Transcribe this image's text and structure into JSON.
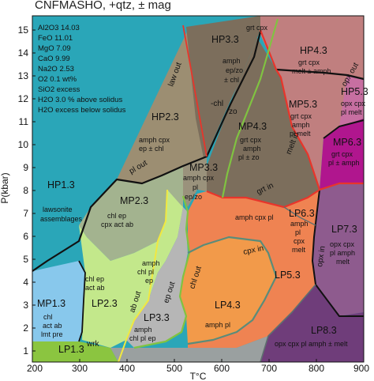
{
  "title": "CNFMASHO, +qtz, ± mag",
  "axes": {
    "x_label": "T°C",
    "y_label": "P(kbar)",
    "x_ticks": [
      "200",
      "300",
      "400",
      "500",
      "600",
      "700",
      "800",
      "900"
    ],
    "y_ticks": [
      "1",
      "2",
      "3",
      "4",
      "5",
      "6",
      "7",
      "8",
      "9",
      "10",
      "11",
      "12",
      "13",
      "14",
      "15"
    ],
    "x_range": [
      200,
      900
    ],
    "y_range": [
      0.5,
      15.5
    ]
  },
  "composition": [
    "Al2O3 14.03",
    "FeO    11.01",
    "MgO    7.09",
    "CaO    9.99",
    "Na2O  2.53",
    "O2       0.1 wt%",
    "SiO2 excess",
    "H2O 3.0 % above solidus",
    "H2O excess below solidus"
  ],
  "fields": {
    "hp13": {
      "name": "HP1.3",
      "lines": [
        "lawsonite",
        "assemblages"
      ]
    },
    "hp23": {
      "name": "HP2.3",
      "lines": [
        "amph cpx",
        "ep ± chl"
      ]
    },
    "hp33": {
      "name": "HP3.3",
      "lines": [
        "grt cpx",
        "amph",
        "ep/zo",
        "± chl"
      ]
    },
    "hp43": {
      "name": "HP4.3",
      "lines": [
        "grt cpx",
        "melt ± amph"
      ]
    },
    "hp53": {
      "name": "HP5.3",
      "lines": [
        "opx cpx",
        "pl melt"
      ]
    },
    "mp13": {
      "name": "MP1.3",
      "lines": [
        "chl",
        "act ab",
        "lmt pre"
      ]
    },
    "mp23": {
      "name": "MP2.3",
      "lines": [
        "chl ep",
        "cpx act ab"
      ]
    },
    "mp33": {
      "name": "MP3.3",
      "lines": [
        "amph cpx",
        "pl",
        "ep/zo"
      ]
    },
    "mp43": {
      "name": "MP4.3",
      "lines": [
        "grt cpx",
        "amph",
        "pl ± zo"
      ]
    },
    "mp53": {
      "name": "MP5.3",
      "lines": [
        "grt cpx",
        "amph",
        "pl melt"
      ]
    },
    "mp63": {
      "name": "MP6.3",
      "lines": [
        "grt cpx",
        "pl ± amph"
      ]
    },
    "lp13": {
      "name": "LP1.3",
      "lines": []
    },
    "lp23": {
      "name": "LP2.3",
      "lines": [
        "chl ep",
        "act ab"
      ]
    },
    "lp33": {
      "name": "LP3.3",
      "lines": [
        "amph",
        "chl pl ep"
      ]
    },
    "lp43": {
      "name": "LP4.3",
      "lines": [
        "amph pl"
      ]
    },
    "lp53": {
      "name": "LP5.3",
      "lines": []
    },
    "lp63": {
      "name": "LP6.3",
      "lines": [
        "amph",
        "pl",
        "cpx",
        "melt"
      ]
    },
    "lp73": {
      "name": "LP7.3",
      "lines": [
        "opx cpx",
        "pl amph",
        "melt"
      ]
    },
    "lp83": {
      "name": "LP8.3",
      "lines": [
        "opx cpx pl amph ± melt"
      ]
    },
    "amph_small": {
      "lines": [
        "amph",
        "chl pl",
        "ep"
      ]
    },
    "amph_cpx_pl": {
      "lines": [
        "amph cpx pl"
      ]
    }
  },
  "reactions": {
    "law_out": "law out",
    "chl_out_upper": "-chl",
    "zo": "zo",
    "pl_out": "pl out",
    "melt_in": "melt in",
    "grt_in": "grt in",
    "cpx_in": "cpx in",
    "opx_in": "opx in",
    "opx_out": "opx out",
    "ab_out": "ab out",
    "ep_out": "ep out",
    "chl_out": "chl out",
    "wrk": "wrk"
  },
  "colors": {
    "hp_teal": "#2aa6b8",
    "hp2_tan": "#9c8e72",
    "hp3_brown": "#7c6e5c",
    "hp4_rose": "#c07f7f",
    "hp5_pink": "#c76fa1",
    "mp6_magenta": "#b0168e",
    "mp2_sage": "#a3b38f",
    "mp1_blue": "#88c8ec",
    "lp2_lime": "#c3e88b",
    "lp3_grey": "#b6b6b6",
    "lp4_orange": "#f29a4a",
    "lp5_orange": "#ef8352",
    "lp7_purple": "#8e5b8e",
    "lp8_purple": "#6f3d7a",
    "lp1_green": "#8bc540",
    "green_reaction": "#80c341",
    "red_reaction": "#e8352b"
  }
}
